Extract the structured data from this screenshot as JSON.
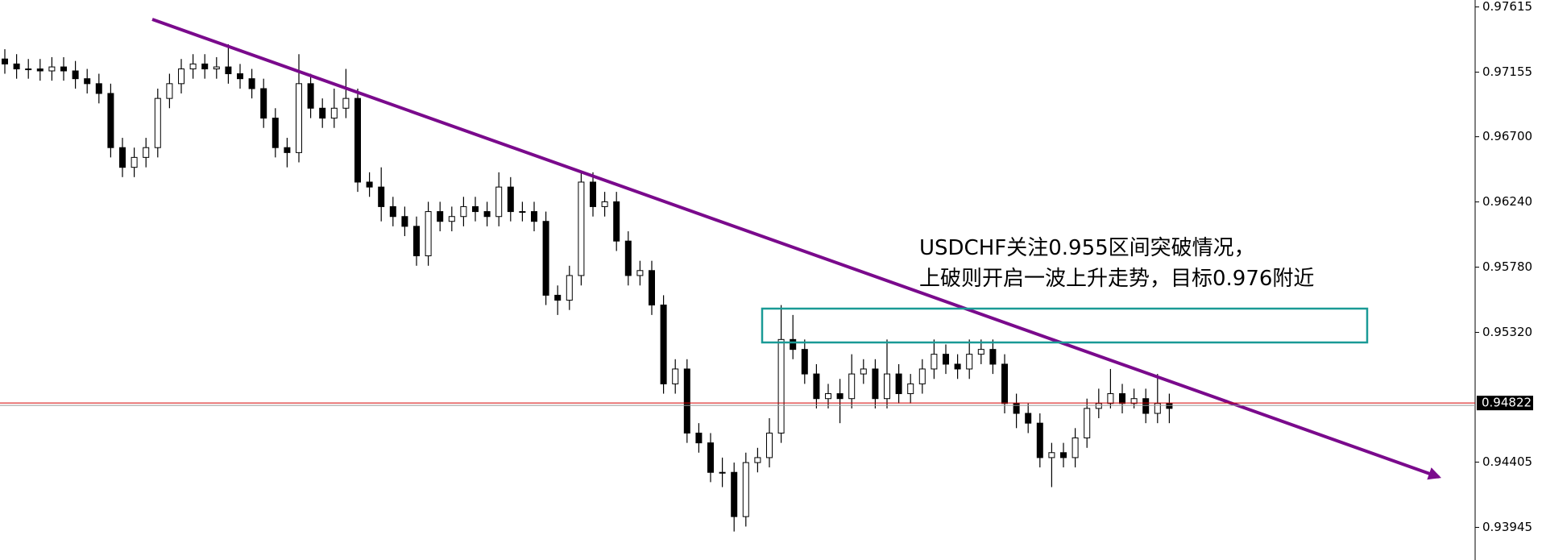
{
  "chart_data": {
    "type": "candlestick",
    "annotation": [
      "USDCHF关注0.955区间突破情况，",
      "上破则开启一波上升走势，目标0.976附近"
    ],
    "ylim": [
      0.93715,
      0.97664
    ],
    "yticks": [
      0.97615,
      0.97155,
      {
        "value": 0.967,
        "label": "0.96700"
      },
      {
        "value": 0.9624,
        "label": "0.96240"
      },
      {
        "value": 0.9578,
        "label": "0.95780"
      },
      {
        "value": 0.9532,
        "label": "0.95320"
      },
      0.94405,
      0.93945
    ],
    "last_price": 0.94822,
    "last_price_color": "#d40000",
    "up_color": "#ffffff",
    "down_color": "#000000",
    "outline_color": "#000000",
    "ohlc": [
      [
        0.97248,
        0.97317,
        0.97144,
        0.97213
      ],
      [
        0.97213,
        0.97282,
        0.97109,
        0.97178
      ],
      [
        0.97178,
        0.97248,
        0.97109,
        0.97178
      ],
      [
        0.97178,
        0.97248,
        0.97095,
        0.97164
      ],
      [
        0.97164,
        0.97261,
        0.97095,
        0.97192
      ],
      [
        0.97192,
        0.97261,
        0.97095,
        0.97164
      ],
      [
        0.97164,
        0.97234,
        0.97039,
        0.97109
      ],
      [
        0.97109,
        0.97178,
        0.97005,
        0.97074
      ],
      [
        0.97074,
        0.97144,
        0.96935,
        0.97005
      ],
      [
        0.97005,
        0.97074,
        0.96554,
        0.96623
      ],
      [
        0.96623,
        0.96692,
        0.96415,
        0.96484
      ],
      [
        0.96484,
        0.96623,
        0.96415,
        0.96554
      ],
      [
        0.96554,
        0.96692,
        0.96484,
        0.96623
      ],
      [
        0.96623,
        0.97039,
        0.96554,
        0.9697
      ],
      [
        0.9697,
        0.97144,
        0.96901,
        0.97074
      ],
      [
        0.97074,
        0.97248,
        0.97005,
        0.97178
      ],
      [
        0.97178,
        0.97282,
        0.97109,
        0.97213
      ],
      [
        0.97213,
        0.97282,
        0.97109,
        0.97178
      ],
      [
        0.97178,
        0.97261,
        0.97109,
        0.97192
      ],
      [
        0.97192,
        0.97352,
        0.97074,
        0.97144
      ],
      [
        0.97144,
        0.97213,
        0.97039,
        0.97109
      ],
      [
        0.97109,
        0.97178,
        0.9697,
        0.97039
      ],
      [
        0.97039,
        0.97109,
        0.96762,
        0.96831
      ],
      [
        0.96831,
        0.96901,
        0.96554,
        0.96623
      ],
      [
        0.96623,
        0.96692,
        0.96484,
        0.96588
      ],
      [
        0.96588,
        0.97282,
        0.96519,
        0.97074
      ],
      [
        0.97074,
        0.97144,
        0.96831,
        0.96901
      ],
      [
        0.96901,
        0.9697,
        0.96762,
        0.96831
      ],
      [
        0.96831,
        0.97039,
        0.96762,
        0.96901
      ],
      [
        0.96901,
        0.97178,
        0.96831,
        0.9697
      ],
      [
        0.9697,
        0.97039,
        0.96311,
        0.9638
      ],
      [
        0.9638,
        0.96449,
        0.96276,
        0.96345
      ],
      [
        0.96345,
        0.96484,
        0.96103,
        0.96207
      ],
      [
        0.96207,
        0.96276,
        0.96068,
        0.96137
      ],
      [
        0.96137,
        0.96207,
        0.95999,
        0.96068
      ],
      [
        0.96068,
        0.96137,
        0.9579,
        0.9586
      ],
      [
        0.9586,
        0.96241,
        0.9579,
        0.96172
      ],
      [
        0.96172,
        0.96241,
        0.96033,
        0.96103
      ],
      [
        0.96103,
        0.96207,
        0.96033,
        0.96137
      ],
      [
        0.96137,
        0.96276,
        0.96068,
        0.96207
      ],
      [
        0.96207,
        0.96276,
        0.96103,
        0.96172
      ],
      [
        0.96172,
        0.96241,
        0.96068,
        0.96137
      ],
      [
        0.96137,
        0.96449,
        0.96068,
        0.96345
      ],
      [
        0.96345,
        0.96415,
        0.96103,
        0.96172
      ],
      [
        0.96172,
        0.96241,
        0.96103,
        0.96172
      ],
      [
        0.96172,
        0.96241,
        0.96033,
        0.96103
      ],
      [
        0.96103,
        0.96172,
        0.95513,
        0.95582
      ],
      [
        0.95582,
        0.95651,
        0.95443,
        0.95547
      ],
      [
        0.95547,
        0.9579,
        0.95478,
        0.95721
      ],
      [
        0.95721,
        0.96449,
        0.95651,
        0.9638
      ],
      [
        0.9638,
        0.96449,
        0.96137,
        0.96207
      ],
      [
        0.96207,
        0.96311,
        0.96137,
        0.96241
      ],
      [
        0.96241,
        0.96311,
        0.95894,
        0.95964
      ],
      [
        0.95964,
        0.96033,
        0.95651,
        0.95721
      ],
      [
        0.95721,
        0.95825,
        0.95651,
        0.95756
      ],
      [
        0.95756,
        0.95825,
        0.95443,
        0.95513
      ],
      [
        0.95513,
        0.95582,
        0.94888,
        0.94957
      ],
      [
        0.94957,
        0.95131,
        0.94888,
        0.95062
      ],
      [
        0.95062,
        0.95131,
        0.94541,
        0.9461
      ],
      [
        0.9461,
        0.9468,
        0.94472,
        0.94541
      ],
      [
        0.94541,
        0.9461,
        0.94264,
        0.94333
      ],
      [
        0.94333,
        0.94437,
        0.94229,
        0.94333
      ],
      [
        0.94333,
        0.94402,
        0.93916,
        0.94021
      ],
      [
        0.94021,
        0.94472,
        0.93951,
        0.94402
      ],
      [
        0.94402,
        0.94506,
        0.94333,
        0.94437
      ],
      [
        0.94437,
        0.94715,
        0.94368,
        0.9461
      ],
      [
        0.9461,
        0.95513,
        0.94541,
        0.9527
      ],
      [
        0.9527,
        0.95443,
        0.95131,
        0.952
      ],
      [
        0.952,
        0.9527,
        0.94957,
        0.95027
      ],
      [
        0.95027,
        0.95096,
        0.94784,
        0.94853
      ],
      [
        0.94853,
        0.94957,
        0.94784,
        0.94888
      ],
      [
        0.94888,
        0.94992,
        0.9468,
        0.94853
      ],
      [
        0.94853,
        0.95166,
        0.94784,
        0.95027
      ],
      [
        0.95027,
        0.95131,
        0.94957,
        0.95062
      ],
      [
        0.95062,
        0.95131,
        0.94784,
        0.94853
      ],
      [
        0.94853,
        0.9527,
        0.94784,
        0.95027
      ],
      [
        0.95027,
        0.95096,
        0.94819,
        0.94888
      ],
      [
        0.94888,
        0.95027,
        0.94819,
        0.94957
      ],
      [
        0.94957,
        0.95131,
        0.94888,
        0.95062
      ],
      [
        0.95062,
        0.9527,
        0.94992,
        0.95166
      ],
      [
        0.95166,
        0.95235,
        0.95027,
        0.95096
      ],
      [
        0.95096,
        0.95166,
        0.94992,
        0.95062
      ],
      [
        0.95062,
        0.9527,
        0.94992,
        0.95166
      ],
      [
        0.95166,
        0.9527,
        0.95096,
        0.952
      ],
      [
        0.952,
        0.9527,
        0.95027,
        0.95096
      ],
      [
        0.95096,
        0.95166,
        0.94749,
        0.94819
      ],
      [
        0.94819,
        0.94888,
        0.94645,
        0.94749
      ],
      [
        0.94749,
        0.94819,
        0.9461,
        0.9468
      ],
      [
        0.9468,
        0.94749,
        0.94368,
        0.94437
      ],
      [
        0.94437,
        0.94541,
        0.94229,
        0.94472
      ],
      [
        0.94472,
        0.94541,
        0.94368,
        0.94437
      ],
      [
        0.94437,
        0.94645,
        0.94368,
        0.94576
      ],
      [
        0.94576,
        0.94853,
        0.94506,
        0.94784
      ],
      [
        0.94784,
        0.94923,
        0.94715,
        0.94819
      ],
      [
        0.94819,
        0.95062,
        0.94784,
        0.94888
      ],
      [
        0.94888,
        0.94957,
        0.94749,
        0.94819
      ],
      [
        0.94819,
        0.94923,
        0.94784,
        0.94853
      ],
      [
        0.94853,
        0.94923,
        0.9468,
        0.94749
      ],
      [
        0.94749,
        0.95027,
        0.9468,
        0.94819
      ],
      [
        0.94819,
        0.94888,
        0.9468,
        0.94784
      ]
    ]
  }
}
